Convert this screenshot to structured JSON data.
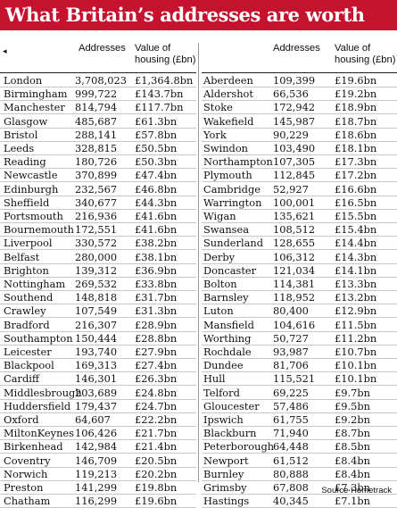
{
  "title": "What Britain’s addresses are worth",
  "headers": {
    "addresses": "Addresses",
    "value_line1": "Value of",
    "value_line2": "housing (£bn)"
  },
  "source": "Source Hometrack",
  "left": [
    {
      "city": "London",
      "addresses": "3,708,023",
      "value": "£1,364.8bn"
    },
    {
      "city": "Birmingham",
      "addresses": "999,722",
      "value": "£143.7bn"
    },
    {
      "city": "Manchester",
      "addresses": "814,794",
      "value": "£117.7bn"
    },
    {
      "city": "Glasgow",
      "addresses": "485,687",
      "value": "£61.3bn"
    },
    {
      "city": "Bristol",
      "addresses": "288,141",
      "value": "£57.8bn"
    },
    {
      "city": "Leeds",
      "addresses": "328,815",
      "value": "£50.5bn"
    },
    {
      "city": "Reading",
      "addresses": "180,726",
      "value": "£50.3bn"
    },
    {
      "city": "Newcastle",
      "addresses": "370,899",
      "value": "£47.4bn"
    },
    {
      "city": "Edinburgh",
      "addresses": "232,567",
      "value": "£46.8bn"
    },
    {
      "city": "Sheffield",
      "addresses": "340,677",
      "value": "£44.3bn"
    },
    {
      "city": "Portsmouth",
      "addresses": "216,936",
      "value": "£41.6bn"
    },
    {
      "city": "Bournemouth",
      "addresses": "172,551",
      "value": "£41.6bn"
    },
    {
      "city": "Liverpool",
      "addresses": "330,572",
      "value": "£38.2bn"
    },
    {
      "city": "Belfast",
      "addresses": "280,000",
      "value": "£38.1bn"
    },
    {
      "city": "Brighton",
      "addresses": "139,312",
      "value": "£36.9bn"
    },
    {
      "city": "Nottingham",
      "addresses": "269,532",
      "value": "£33.8bn"
    },
    {
      "city": "Southend",
      "addresses": "148,818",
      "value": "£31.7bn"
    },
    {
      "city": "Crawley",
      "addresses": "107,549",
      "value": "£31.3bn"
    },
    {
      "city": "Bradford",
      "addresses": "216,307",
      "value": "£28.9bn"
    },
    {
      "city": "Southampton",
      "addresses": "150,444",
      "value": "£28.8bn"
    },
    {
      "city": "Leicester",
      "addresses": "193,740",
      "value": "£27.9bn"
    },
    {
      "city": "Blackpool",
      "addresses": "169,313",
      "value": "£27.4bn"
    },
    {
      "city": "Cardiff",
      "addresses": "146,301",
      "value": "£26.3bn"
    },
    {
      "city": "Middlesbrough",
      "addresses": "203,689",
      "value": "£24.8bn"
    },
    {
      "city": "Huddersfield",
      "addresses": "179,437",
      "value": "£24.7bn"
    },
    {
      "city": "Oxford",
      "addresses": "64,607",
      "value": "£22.2bn"
    },
    {
      "city": "MiltonKeynes",
      "addresses": "106,426",
      "value": "£21.7bn"
    },
    {
      "city": "Birkenhead",
      "addresses": "142,984",
      "value": "£21.4bn"
    },
    {
      "city": "Coventry",
      "addresses": "146,709",
      "value": "£20.5bn"
    },
    {
      "city": "Norwich",
      "addresses": "119,213",
      "value": "£20.2bn"
    },
    {
      "city": "Preston",
      "addresses": "141,299",
      "value": "£19.8bn"
    },
    {
      "city": "Chatham",
      "addresses": "116,299",
      "value": "£19.6bn"
    }
  ],
  "right": [
    {
      "city": "Aberdeen",
      "addresses": "109,399",
      "value": "£19.6bn"
    },
    {
      "city": "Aldershot",
      "addresses": "66,536",
      "value": "£19.2bn"
    },
    {
      "city": "Stoke",
      "addresses": "172,942",
      "value": "£18.9bn"
    },
    {
      "city": "Wakefield",
      "addresses": "145,987",
      "value": "£18.7bn"
    },
    {
      "city": "York",
      "addresses": "90,229",
      "value": "£18.6bn"
    },
    {
      "city": "Swindon",
      "addresses": "103,490",
      "value": "£18.1bn"
    },
    {
      "city": "Northampton",
      "addresses": "107,305",
      "value": "£17.3bn"
    },
    {
      "city": "Plymouth",
      "addresses": "112,845",
      "value": "£17.2bn"
    },
    {
      "city": "Cambridge",
      "addresses": "52,927",
      "value": "£16.6bn"
    },
    {
      "city": "Warrington",
      "addresses": "100,001",
      "value": "£16.5bn"
    },
    {
      "city": "Wigan",
      "addresses": "135,621",
      "value": "£15.5bn"
    },
    {
      "city": "Swansea",
      "addresses": "108,512",
      "value": "£15.4bn"
    },
    {
      "city": "Sunderland",
      "addresses": "128,655",
      "value": "£14.4bn"
    },
    {
      "city": "Derby",
      "addresses": "106,312",
      "value": "£14.3bn"
    },
    {
      "city": "Doncaster",
      "addresses": "121,034",
      "value": "£14.1bn"
    },
    {
      "city": "Bolton",
      "addresses": "114,381",
      "value": "£13.3bn"
    },
    {
      "city": "Barnsley",
      "addresses": "118,952",
      "value": "£13.2bn"
    },
    {
      "city": "Luton",
      "addresses": "80,400",
      "value": "£12.9bn"
    },
    {
      "city": "Mansfield",
      "addresses": "104,616",
      "value": "£11.5bn"
    },
    {
      "city": "Worthing",
      "addresses": "50,727",
      "value": "£11.2bn"
    },
    {
      "city": "Rochdale",
      "addresses": "93,987",
      "value": "£10.7bn"
    },
    {
      "city": "Dundee",
      "addresses": "81,706",
      "value": "£10.1bn"
    },
    {
      "city": "Hull",
      "addresses": "115,521",
      "value": "£10.1bn"
    },
    {
      "city": "Telford",
      "addresses": "69,225",
      "value": "£9.7bn"
    },
    {
      "city": "Gloucester",
      "addresses": "57,486",
      "value": "£9.5bn"
    },
    {
      "city": "Ipswich",
      "addresses": "61,755",
      "value": "£9.2bn"
    },
    {
      "city": "Blackburn",
      "addresses": "71,940",
      "value": "£8.7bn"
    },
    {
      "city": "Peterborough",
      "addresses": "64,448",
      "value": "£8.5bn"
    },
    {
      "city": "Newport",
      "addresses": "61,512",
      "value": "£8.4bn"
    },
    {
      "city": "Burnley",
      "addresses": "80,888",
      "value": "£8.4bn"
    },
    {
      "city": "Grimsby",
      "addresses": "67,808",
      "value": "£7.3bn"
    },
    {
      "city": "Hastings",
      "addresses": "40,345",
      "value": "£7.1bn"
    }
  ]
}
